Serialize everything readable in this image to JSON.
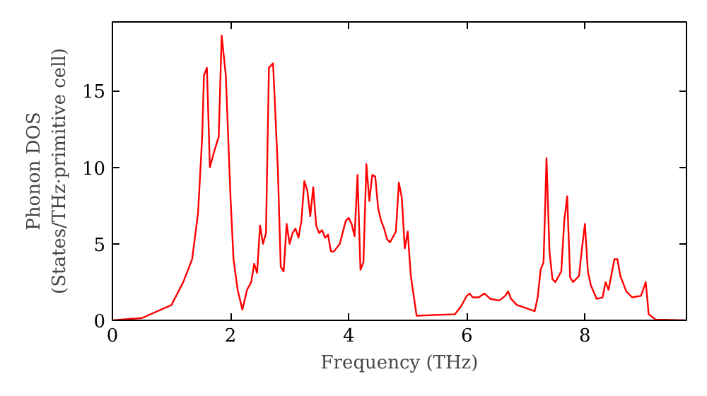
{
  "chart_data": {
    "type": "line",
    "xlabel": "Frequency (THz)",
    "ylabel": "Phonon DOS\n(States/THz·primitive cell)",
    "xlim": [
      0,
      9.72
    ],
    "ylim": [
      0,
      19.5
    ],
    "xticks": [
      0,
      2,
      4,
      6,
      8
    ],
    "yticks": [
      0,
      5,
      10,
      15
    ],
    "grid": false,
    "marker": "none",
    "line_style": "solid",
    "series": [
      {
        "color": "#ff0000",
        "x": [
          0,
          0.5,
          1.0,
          1.2,
          1.35,
          1.45,
          1.52,
          1.55,
          1.6,
          1.65,
          1.72,
          1.8,
          1.85,
          1.92,
          2.0,
          2.05,
          2.12,
          2.2,
          2.28,
          2.35,
          2.4,
          2.45,
          2.5,
          2.55,
          2.6,
          2.65,
          2.72,
          2.8,
          2.85,
          2.9,
          2.95,
          3.0,
          3.05,
          3.1,
          3.15,
          3.2,
          3.25,
          3.3,
          3.35,
          3.4,
          3.45,
          3.5,
          3.55,
          3.6,
          3.65,
          3.7,
          3.75,
          3.85,
          3.95,
          4.0,
          4.05,
          4.1,
          4.15,
          4.2,
          4.25,
          4.3,
          4.35,
          4.4,
          4.45,
          4.5,
          4.55,
          4.6,
          4.65,
          4.7,
          4.8,
          4.85,
          4.9,
          4.95,
          5.0,
          5.05,
          5.15,
          5.8,
          5.9,
          6.0,
          6.05,
          6.1,
          6.2,
          6.3,
          6.4,
          6.55,
          6.65,
          6.7,
          6.75,
          6.85,
          7.0,
          7.15,
          7.2,
          7.25,
          7.3,
          7.35,
          7.4,
          7.45,
          7.5,
          7.6,
          7.65,
          7.7,
          7.75,
          7.8,
          7.9,
          7.95,
          8.0,
          8.05,
          8.1,
          8.2,
          8.3,
          8.35,
          8.4,
          8.5,
          8.55,
          8.6,
          8.7,
          8.8,
          8.95,
          9.03,
          9.08,
          9.2,
          9.72
        ],
        "values": [
          0,
          0.15,
          1.0,
          2.5,
          4,
          7,
          12,
          16,
          16.5,
          10,
          11,
          12,
          18.6,
          16,
          8,
          4,
          2,
          0.7,
          2,
          2.5,
          3.7,
          3.1,
          6.2,
          5.0,
          5.7,
          16.5,
          16.8,
          10,
          3.5,
          3.2,
          6.3,
          5.0,
          5.7,
          6.0,
          5.4,
          6.5,
          9.1,
          8.5,
          6.8,
          8.7,
          6.2,
          5.7,
          5.9,
          5.4,
          5.6,
          4.5,
          4.5,
          5.0,
          6.5,
          6.7,
          6.3,
          5.5,
          9.5,
          3.3,
          3.8,
          10.2,
          7.8,
          9.5,
          9.4,
          7.3,
          6.5,
          6.0,
          5.3,
          5.1,
          5.8,
          9.0,
          8.0,
          4.7,
          5.8,
          3,
          0.3,
          0.4,
          0.9,
          1.6,
          1.75,
          1.5,
          1.5,
          1.75,
          1.4,
          1.3,
          1.6,
          1.9,
          1.4,
          1.0,
          0.8,
          0.6,
          1.5,
          3.3,
          3.8,
          10.6,
          4.5,
          2.7,
          2.5,
          3.2,
          6.5,
          8.1,
          2.8,
          2.5,
          2.9,
          4.7,
          6.3,
          3.2,
          2.3,
          1.4,
          1.5,
          2.5,
          2.0,
          4.0,
          4.0,
          2.9,
          1.9,
          1.5,
          1.6,
          2.5,
          0.4,
          0.05,
          0
        ]
      }
    ]
  }
}
